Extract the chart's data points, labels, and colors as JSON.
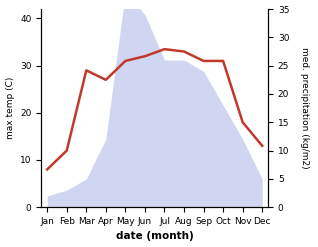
{
  "months": [
    "Jan",
    "Feb",
    "Mar",
    "Apr",
    "May",
    "Jun",
    "Jul",
    "Aug",
    "Sep",
    "Oct",
    "Nov",
    "Dec"
  ],
  "max_temp": [
    8.0,
    12.0,
    29.0,
    27.0,
    31.0,
    32.0,
    33.5,
    33.0,
    31.0,
    31.0,
    18.0,
    13.0
  ],
  "precipitation": [
    2.0,
    3.0,
    5.0,
    12.0,
    38.0,
    34.0,
    26.0,
    26.0,
    24.0,
    18.0,
    12.0,
    5.0
  ],
  "temp_color": "#c0392b",
  "precip_color": "#aab4e8",
  "precip_fill_alpha": 0.55,
  "xlabel": "date (month)",
  "ylabel_left": "max temp (C)",
  "ylabel_right": "med. precipitation (kg/m2)",
  "ylim_left": [
    0,
    42
  ],
  "ylim_right": [
    0,
    35
  ],
  "yticks_left": [
    0,
    10,
    20,
    30,
    40
  ],
  "yticks_right": [
    0,
    5,
    10,
    15,
    20,
    25,
    30,
    35
  ],
  "figsize": [
    3.18,
    2.47
  ],
  "dpi": 100
}
